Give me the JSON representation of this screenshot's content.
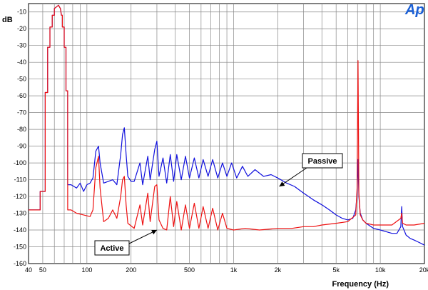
{
  "logo_text": "Ap",
  "colors": {
    "passive": "#1010dd",
    "active": "#ee1111",
    "grid": "#888888",
    "logo": "#1a5fd6"
  },
  "chart_data": {
    "type": "line",
    "xscale": "log",
    "xlim": [
      40,
      20000
    ],
    "ylim": [
      -160,
      -5
    ],
    "xlabel": "Frequency (Hz)",
    "ylabel": "dB",
    "grid": true,
    "x_tick_labels": [
      {
        "v": 40,
        "t": "40"
      },
      {
        "v": 50,
        "t": "50"
      },
      {
        "v": 100,
        "t": "100"
      },
      {
        "v": 200,
        "t": "200"
      },
      {
        "v": 500,
        "t": "500"
      },
      {
        "v": 1000,
        "t": "1k"
      },
      {
        "v": 2000,
        "t": "2k"
      },
      {
        "v": 5000,
        "t": "5k"
      },
      {
        "v": 10000,
        "t": "10k"
      },
      {
        "v": 20000,
        "t": "20k"
      }
    ],
    "y_ticks": [
      -10,
      -20,
      -30,
      -40,
      -50,
      -60,
      -70,
      -80,
      -90,
      -100,
      -110,
      -120,
      -130,
      -140,
      -150,
      -160
    ],
    "series": [
      {
        "name": "Passive",
        "points": [
          [
            40,
            -128
          ],
          [
            48,
            -128
          ],
          [
            48,
            -117
          ],
          [
            52,
            -117
          ],
          [
            52,
            -58
          ],
          [
            54,
            -58
          ],
          [
            54,
            -31
          ],
          [
            56,
            -31
          ],
          [
            56,
            -19
          ],
          [
            58,
            -19
          ],
          [
            58,
            -12
          ],
          [
            60,
            -12
          ],
          [
            60,
            -8
          ],
          [
            62,
            -7
          ],
          [
            64,
            -6
          ],
          [
            66,
            -8
          ],
          [
            67,
            -12
          ],
          [
            68,
            -12
          ],
          [
            68,
            -19
          ],
          [
            70,
            -19
          ],
          [
            70,
            -31
          ],
          [
            72,
            -31
          ],
          [
            72,
            -57
          ],
          [
            74,
            -57
          ],
          [
            74,
            -113
          ],
          [
            78,
            -113
          ],
          [
            85,
            -115
          ],
          [
            90,
            -112
          ],
          [
            95,
            -117
          ],
          [
            100,
            -113
          ],
          [
            105,
            -112
          ],
          [
            110,
            -109
          ],
          [
            115,
            -93
          ],
          [
            120,
            -90
          ],
          [
            123,
            -100
          ],
          [
            130,
            -112
          ],
          [
            140,
            -111
          ],
          [
            150,
            -110
          ],
          [
            160,
            -113
          ],
          [
            170,
            -95
          ],
          [
            175,
            -83
          ],
          [
            180,
            -79
          ],
          [
            185,
            -95
          ],
          [
            190,
            -108
          ],
          [
            200,
            -111
          ],
          [
            210,
            -111
          ],
          [
            230,
            -100
          ],
          [
            240,
            -113
          ],
          [
            260,
            -96
          ],
          [
            270,
            -110
          ],
          [
            290,
            -92
          ],
          [
            300,
            -87
          ],
          [
            310,
            -108
          ],
          [
            330,
            -97
          ],
          [
            350,
            -112
          ],
          [
            370,
            -95
          ],
          [
            390,
            -111
          ],
          [
            410,
            -95
          ],
          [
            440,
            -110
          ],
          [
            470,
            -96
          ],
          [
            500,
            -109
          ],
          [
            540,
            -97
          ],
          [
            580,
            -109
          ],
          [
            620,
            -98
          ],
          [
            670,
            -108
          ],
          [
            720,
            -98
          ],
          [
            780,
            -109
          ],
          [
            840,
            -100
          ],
          [
            900,
            -108
          ],
          [
            970,
            -100
          ],
          [
            1050,
            -109
          ],
          [
            1150,
            -102
          ],
          [
            1250,
            -108
          ],
          [
            1400,
            -104
          ],
          [
            1600,
            -108
          ],
          [
            1800,
            -107
          ],
          [
            2000,
            -109
          ],
          [
            2300,
            -112
          ],
          [
            2600,
            -114
          ],
          [
            3000,
            -118
          ],
          [
            3500,
            -122
          ],
          [
            4000,
            -125
          ],
          [
            4500,
            -128
          ],
          [
            5000,
            -131
          ],
          [
            5500,
            -133
          ],
          [
            6000,
            -134
          ],
          [
            6500,
            -133
          ],
          [
            6800,
            -128
          ],
          [
            6950,
            -118
          ],
          [
            7050,
            -98
          ],
          [
            7150,
            -120
          ],
          [
            7300,
            -130
          ],
          [
            7600,
            -134
          ],
          [
            8000,
            -136
          ],
          [
            9000,
            -139
          ],
          [
            10000,
            -140
          ],
          [
            11000,
            -141
          ],
          [
            12000,
            -142
          ],
          [
            13000,
            -142
          ],
          [
            13800,
            -138
          ],
          [
            14000,
            -126
          ],
          [
            14200,
            -138
          ],
          [
            15000,
            -143
          ],
          [
            16000,
            -145
          ],
          [
            17000,
            -146
          ],
          [
            18000,
            -147
          ],
          [
            19000,
            -148
          ],
          [
            20000,
            -149
          ]
        ]
      },
      {
        "name": "Active",
        "points": [
          [
            40,
            -128
          ],
          [
            48,
            -128
          ],
          [
            48,
            -117
          ],
          [
            52,
            -117
          ],
          [
            52,
            -58
          ],
          [
            54,
            -58
          ],
          [
            54,
            -31
          ],
          [
            56,
            -31
          ],
          [
            56,
            -19
          ],
          [
            58,
            -19
          ],
          [
            58,
            -12
          ],
          [
            60,
            -12
          ],
          [
            60,
            -8
          ],
          [
            62,
            -7
          ],
          [
            64,
            -6
          ],
          [
            66,
            -8
          ],
          [
            67,
            -12
          ],
          [
            68,
            -12
          ],
          [
            68,
            -19
          ],
          [
            70,
            -19
          ],
          [
            70,
            -31
          ],
          [
            72,
            -31
          ],
          [
            72,
            -57
          ],
          [
            74,
            -57
          ],
          [
            74,
            -128
          ],
          [
            78,
            -128
          ],
          [
            85,
            -130
          ],
          [
            95,
            -131
          ],
          [
            105,
            -132
          ],
          [
            110,
            -128
          ],
          [
            115,
            -103
          ],
          [
            120,
            -96
          ],
          [
            123,
            -115
          ],
          [
            130,
            -135
          ],
          [
            140,
            -133
          ],
          [
            150,
            -128
          ],
          [
            160,
            -133
          ],
          [
            170,
            -120
          ],
          [
            175,
            -110
          ],
          [
            180,
            -108
          ],
          [
            185,
            -125
          ],
          [
            190,
            -136
          ],
          [
            210,
            -139
          ],
          [
            230,
            -125
          ],
          [
            240,
            -137
          ],
          [
            260,
            -118
          ],
          [
            270,
            -135
          ],
          [
            290,
            -114
          ],
          [
            300,
            -113
          ],
          [
            310,
            -134
          ],
          [
            330,
            -139
          ],
          [
            350,
            -140
          ],
          [
            370,
            -120
          ],
          [
            390,
            -138
          ],
          [
            410,
            -123
          ],
          [
            440,
            -140
          ],
          [
            470,
            -125
          ],
          [
            500,
            -139
          ],
          [
            540,
            -124
          ],
          [
            580,
            -139
          ],
          [
            620,
            -126
          ],
          [
            670,
            -139
          ],
          [
            720,
            -127
          ],
          [
            780,
            -140
          ],
          [
            840,
            -130
          ],
          [
            900,
            -139
          ],
          [
            1000,
            -140
          ],
          [
            1200,
            -139
          ],
          [
            1500,
            -140
          ],
          [
            2000,
            -139
          ],
          [
            2500,
            -139
          ],
          [
            3000,
            -138
          ],
          [
            3500,
            -138
          ],
          [
            4000,
            -137
          ],
          [
            5000,
            -136
          ],
          [
            6000,
            -135
          ],
          [
            6800,
            -131
          ],
          [
            6950,
            -115
          ],
          [
            7050,
            -39
          ],
          [
            7150,
            -118
          ],
          [
            7300,
            -131
          ],
          [
            7600,
            -134
          ],
          [
            8000,
            -136
          ],
          [
            9000,
            -137
          ],
          [
            10000,
            -137
          ],
          [
            12000,
            -137
          ],
          [
            13800,
            -133
          ],
          [
            14000,
            -130
          ],
          [
            14200,
            -136
          ],
          [
            15000,
            -137
          ],
          [
            17000,
            -137
          ],
          [
            20000,
            -136
          ]
        ]
      }
    ],
    "annotations": [
      {
        "text": "Passive",
        "series": "Passive",
        "arrow_to": [
          2050,
          -114
        ]
      },
      {
        "text": "Active",
        "series": "Active",
        "arrow_to": [
          300,
          -140
        ]
      }
    ]
  }
}
